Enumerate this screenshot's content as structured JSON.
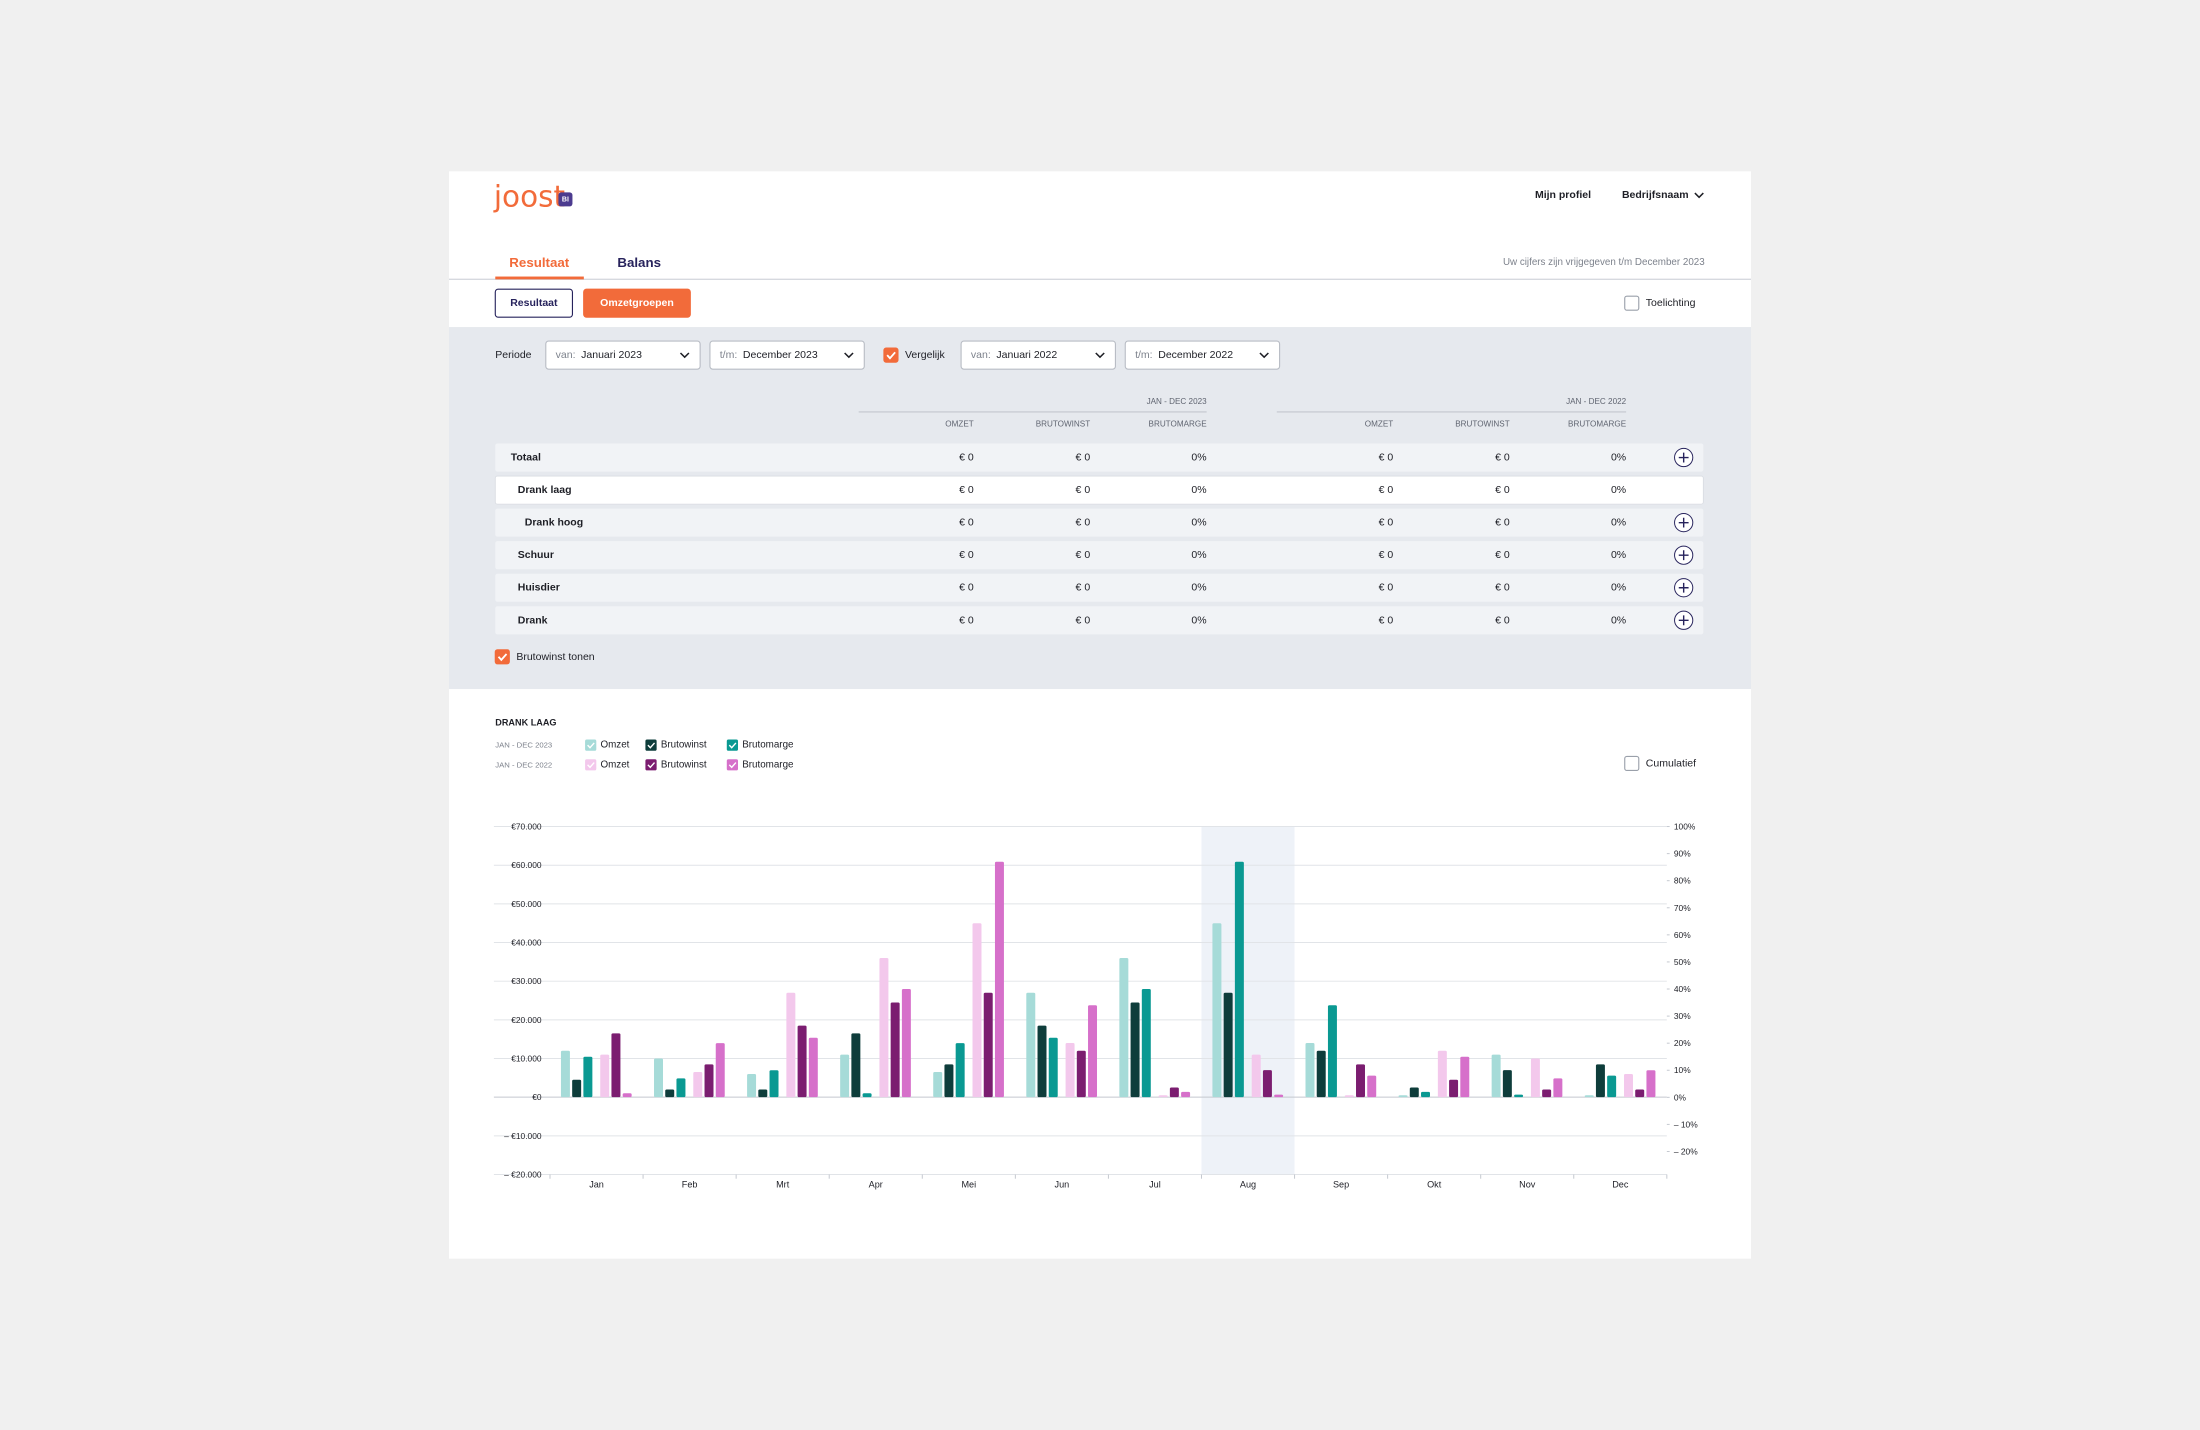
{
  "header": {
    "logo": "joost",
    "badge": "BI",
    "profile": "Mijn profiel",
    "company": "Bedrijfsnaam"
  },
  "tabs": {
    "items": [
      "Resultaat",
      "Balans"
    ],
    "active": 0,
    "note": "Uw cijfers zijn vrijgegeven t/m December 2023"
  },
  "toolbar": {
    "buttons": [
      "Resultaat",
      "Omzetgroepen"
    ],
    "active": 1,
    "toggle": {
      "label": "Toelichting",
      "checked": false
    }
  },
  "filters": {
    "period_label": "Periode",
    "from": {
      "prefix": "van:",
      "value": "Januari 2023"
    },
    "to": {
      "prefix": "t/m:",
      "value": "December 2023"
    },
    "compare": {
      "label": "Vergelijk",
      "checked": true
    },
    "compare_from": {
      "prefix": "van:",
      "value": "Januari 2022"
    },
    "compare_to": {
      "prefix": "t/m:",
      "value": "December 2022"
    }
  },
  "table": {
    "groups": [
      "JAN - DEC 2023",
      "JAN - DEC 2022"
    ],
    "columns": [
      "OMZET",
      "BRUTOWINST",
      "BRUTOMARGE"
    ],
    "selected": 1,
    "rows": [
      {
        "label": "Totaal",
        "level": 0,
        "expandable": true,
        "cells": [
          "€ 0",
          "€ 0",
          "0%",
          "€ 0",
          "€ 0",
          "0%"
        ]
      },
      {
        "label": "Drank laag",
        "level": 1,
        "expandable": false,
        "cells": [
          "€ 0",
          "€ 0",
          "0%",
          "€ 0",
          "€ 0",
          "0%"
        ]
      },
      {
        "label": "Drank hoog",
        "level": 2,
        "expandable": true,
        "cells": [
          "€ 0",
          "€ 0",
          "0%",
          "€ 0",
          "€ 0",
          "0%"
        ]
      },
      {
        "label": "Schuur",
        "level": 1,
        "expandable": true,
        "cells": [
          "€ 0",
          "€ 0",
          "0%",
          "€ 0",
          "€ 0",
          "0%"
        ]
      },
      {
        "label": "Huisdier",
        "level": 1,
        "expandable": true,
        "cells": [
          "€ 0",
          "€ 0",
          "0%",
          "€ 0",
          "€ 0",
          "0%"
        ]
      },
      {
        "label": "Drank",
        "level": 1,
        "expandable": true,
        "cells": [
          "€ 0",
          "€ 0",
          "0%",
          "€ 0",
          "€ 0",
          "0%"
        ]
      }
    ]
  },
  "show_gross": {
    "label": "Brutowinst tonen",
    "checked": true
  },
  "chart_data": {
    "type": "bar",
    "title": "DRANK LAAG",
    "legend_groups": [
      "JAN - DEC 2023",
      "JAN - DEC 2022"
    ],
    "toggle": {
      "label": "Cumulatief",
      "checked": false
    },
    "categories": [
      "Jan",
      "Feb",
      "Mrt",
      "Apr",
      "Mei",
      "Jun",
      "Jul",
      "Aug",
      "Sep",
      "Okt",
      "Nov",
      "Dec"
    ],
    "highlight": "Aug",
    "grid": true,
    "series": [
      {
        "name": "Omzet",
        "color": "#a6dbd8",
        "values": [
          12000,
          10000,
          6000,
          11000,
          6500,
          27000,
          36000,
          45000,
          14000,
          500,
          11000,
          500
        ]
      },
      {
        "name": "Brutowinst",
        "color": "#0e3d3b",
        "values": [
          4500,
          2000,
          2000,
          16500,
          8500,
          18500,
          24500,
          27000,
          12000,
          2500,
          7000,
          8500
        ]
      },
      {
        "name": "Brutomarge",
        "color": "#0a9992",
        "axis": "y2",
        "values": [
          15,
          7,
          10,
          1.5,
          20,
          22,
          40,
          87,
          34,
          2,
          1,
          8
        ]
      },
      {
        "name": "Omzet",
        "color": "#f3c8ec",
        "values": [
          11000,
          6500,
          27000,
          36000,
          45000,
          14000,
          500,
          11000,
          500,
          12000,
          10000,
          6000
        ]
      },
      {
        "name": "Brutowinst",
        "color": "#7b1d70",
        "values": [
          16500,
          8500,
          18500,
          24500,
          27000,
          12000,
          2500,
          7000,
          8500,
          4500,
          2000,
          2000
        ]
      },
      {
        "name": "Brutomarge",
        "color": "#d670ca",
        "axis": "y2",
        "values": [
          1.5,
          20,
          22,
          40,
          87,
          34,
          2,
          1,
          8,
          15,
          7,
          10
        ]
      }
    ],
    "ylim": [
      -20000,
      70000
    ],
    "yticks": [
      {
        "value": 70000,
        "label": "€70.000"
      },
      {
        "value": 60000,
        "label": "€60.000"
      },
      {
        "value": 50000,
        "label": "€50.000"
      },
      {
        "value": 40000,
        "label": "€40.000"
      },
      {
        "value": 30000,
        "label": "€30.000"
      },
      {
        "value": 20000,
        "label": "€20.000"
      },
      {
        "value": 10000,
        "label": "€10.000"
      },
      {
        "value": 0,
        "label": "€0"
      },
      {
        "value": -10000,
        "label": "– €10.000"
      },
      {
        "value": -20000,
        "label": "– €20.000"
      }
    ],
    "y2lim": [
      -28.5,
      100
    ],
    "y2ticks": [
      {
        "value": 100,
        "label": "100%"
      },
      {
        "value": 90,
        "label": "90%"
      },
      {
        "value": 80,
        "label": "80%"
      },
      {
        "value": 70,
        "label": "70%"
      },
      {
        "value": 60,
        "label": "60%"
      },
      {
        "value": 50,
        "label": "50%"
      },
      {
        "value": 40,
        "label": "40%"
      },
      {
        "value": 30,
        "label": "30%"
      },
      {
        "value": 20,
        "label": "20%"
      },
      {
        "value": 10,
        "label": "10%"
      },
      {
        "value": 0,
        "label": "0%"
      },
      {
        "value": -10,
        "label": "– 10%"
      },
      {
        "value": -20,
        "label": "– 20%"
      }
    ]
  }
}
